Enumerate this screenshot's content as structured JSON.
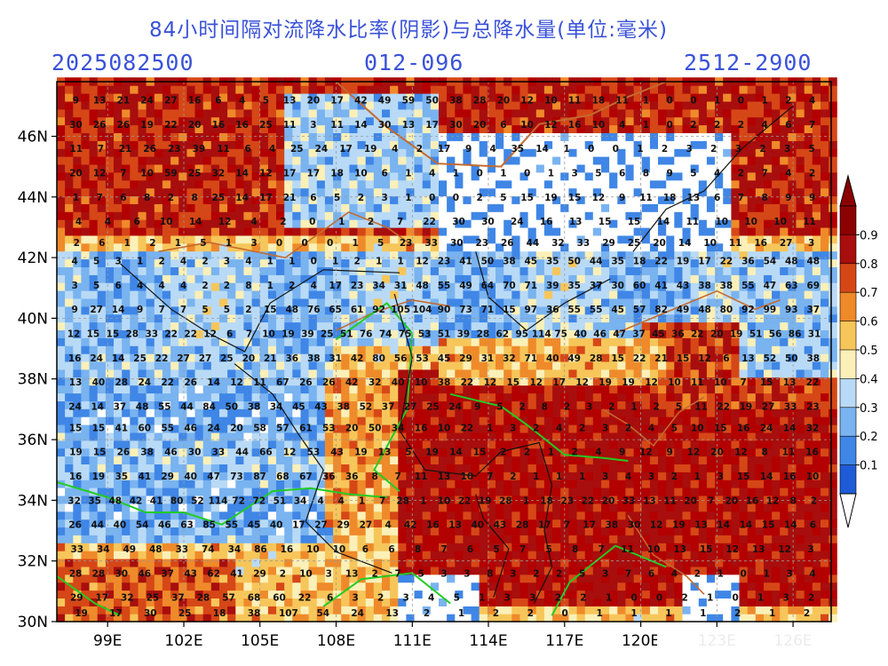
{
  "title": "84小时间隔对流降水比率(阴影)与总降水量(单位:毫米)",
  "subtitle": {
    "left": "2025082500",
    "middle": "012-096",
    "right": "2512-2900"
  },
  "map": {
    "lon_min": 97.0,
    "lon_max": 127.5,
    "lat_min": 30.0,
    "lat_max": 47.8,
    "x_ticks": [
      "99E",
      "102E",
      "105E",
      "108E",
      "111E",
      "114E",
      "117E",
      "120E",
      "123E",
      "126E"
    ],
    "x_tick_lons": [
      99,
      102,
      105,
      108,
      111,
      114,
      117,
      120,
      123,
      126
    ],
    "y_ticks": [
      "30N",
      "32N",
      "34N",
      "36N",
      "38N",
      "40N",
      "42N",
      "44N",
      "46N"
    ],
    "y_tick_lats": [
      30,
      32,
      34,
      36,
      38,
      40,
      42,
      44,
      46
    ]
  },
  "colorbar": {
    "labels": [
      "0.9",
      "0.8",
      "0.7",
      "0.6",
      "0.5",
      "0.4",
      "0.3",
      "0.2",
      "0.1"
    ],
    "colors": [
      "#1f5bd6",
      "#3f86e6",
      "#79b3f0",
      "#b9daf6",
      "#fbf0b8",
      "#f7c65a",
      "#ef8a2a",
      "#d64717",
      "#a80e0d",
      "#8b0000"
    ],
    "under_color": "#ffffff",
    "over_color": "#b30000"
  },
  "precip_rows": [
    {
      "lat": 47.2,
      "values": [
        9,
        13,
        21,
        24,
        27,
        16,
        6,
        4,
        5,
        13,
        20,
        17,
        42,
        49,
        59,
        50,
        38,
        28,
        20,
        12,
        10,
        11,
        18,
        11,
        1,
        0,
        0,
        1,
        0,
        1,
        2,
        4
      ]
    },
    {
      "lat": 46.4,
      "values": [
        30,
        26,
        26,
        19,
        22,
        20,
        16,
        16,
        25,
        11,
        3,
        11,
        14,
        30,
        13,
        17,
        30,
        20,
        6,
        10,
        12,
        16,
        10,
        4,
        1,
        0,
        2,
        2,
        2,
        4,
        6,
        7
      ]
    },
    {
      "lat": 45.6,
      "values": [
        11,
        7,
        21,
        26,
        23,
        39,
        11,
        6,
        4,
        25,
        24,
        17,
        19,
        4,
        2,
        17,
        9,
        4,
        35,
        14,
        1,
        0,
        0,
        1,
        2,
        3,
        2,
        3,
        2,
        3,
        5
      ]
    },
    {
      "lat": 44.8,
      "values": [
        20,
        12,
        7,
        10,
        59,
        25,
        32,
        14,
        12,
        17,
        17,
        18,
        10,
        6,
        1,
        4,
        1,
        0,
        1,
        0,
        1,
        3,
        5,
        6,
        8,
        9,
        5,
        4,
        2,
        7,
        4,
        2
      ]
    },
    {
      "lat": 44.0,
      "values": [
        1,
        7,
        6,
        8,
        2,
        8,
        25,
        14,
        17,
        21,
        6,
        5,
        2,
        3,
        1,
        0,
        0,
        2,
        5,
        15,
        19,
        15,
        12,
        9,
        11,
        18,
        13,
        6,
        7,
        8,
        9,
        9
      ]
    },
    {
      "lat": 43.2,
      "values": [
        4,
        4,
        6,
        10,
        14,
        12,
        4,
        2,
        0,
        1,
        2,
        7,
        22,
        30,
        30,
        24,
        16,
        13,
        15,
        15,
        14,
        11,
        10,
        10,
        10,
        11
      ]
    },
    {
      "lat": 42.5,
      "values": [
        2,
        6,
        1,
        2,
        1,
        5,
        1,
        3,
        0,
        0,
        0,
        1,
        5,
        23,
        33,
        30,
        23,
        26,
        44,
        32,
        33,
        29,
        25,
        20,
        14,
        10,
        11,
        16,
        27,
        3
      ]
    },
    {
      "lat": 41.9,
      "values": [
        4,
        5,
        3,
        1,
        2,
        4,
        2,
        3,
        4,
        1,
        1,
        0,
        1,
        2,
        1,
        1,
        12,
        23,
        41,
        50,
        38,
        45,
        35,
        50,
        44,
        35,
        18,
        22,
        19,
        17,
        22,
        36,
        54,
        48,
        48
      ]
    },
    {
      "lat": 41.1,
      "values": [
        3,
        5,
        6,
        4,
        4,
        4,
        2,
        2,
        8,
        1,
        2,
        4,
        17,
        23,
        34,
        31,
        48,
        55,
        49,
        64,
        70,
        71,
        39,
        35,
        37,
        30,
        60,
        41,
        43,
        38,
        38,
        55,
        47,
        63,
        69
      ]
    },
    {
      "lat": 40.3,
      "values": [
        9,
        27,
        14,
        9,
        7,
        7,
        5,
        5,
        2,
        15,
        48,
        76,
        65,
        61,
        92,
        105,
        104,
        90,
        73,
        71,
        15,
        97,
        36,
        55,
        55,
        45,
        57,
        82,
        49,
        48,
        80,
        92,
        99,
        93,
        37
      ]
    },
    {
      "lat": 39.5,
      "values": [
        12,
        15,
        15,
        28,
        33,
        22,
        22,
        12,
        6,
        7,
        10,
        19,
        39,
        25,
        51,
        76,
        74,
        75,
        53,
        51,
        39,
        28,
        62,
        95,
        114,
        75,
        40,
        46,
        47,
        37,
        45,
        36,
        22,
        20,
        19,
        51,
        56,
        86,
        31
      ]
    },
    {
      "lat": 38.7,
      "values": [
        16,
        24,
        14,
        25,
        22,
        27,
        27,
        25,
        20,
        21,
        36,
        38,
        31,
        42,
        80,
        56,
        53,
        45,
        29,
        31,
        32,
        71,
        40,
        49,
        28,
        15,
        22,
        21,
        15,
        12,
        6,
        13,
        52,
        50,
        38
      ]
    },
    {
      "lat": 37.9,
      "values": [
        13,
        40,
        28,
        24,
        22,
        26,
        14,
        12,
        11,
        67,
        26,
        26,
        42,
        32,
        40,
        10,
        38,
        22,
        12,
        15,
        12,
        17,
        12,
        19,
        19,
        12,
        10,
        11,
        10,
        7,
        15,
        13,
        22
      ]
    },
    {
      "lat": 37.1,
      "values": [
        24,
        14,
        37,
        48,
        55,
        44,
        84,
        50,
        38,
        34,
        45,
        43,
        38,
        52,
        37,
        27,
        25,
        24,
        9,
        5,
        2,
        8,
        2,
        3,
        2,
        1,
        2,
        5,
        11,
        22,
        19,
        27,
        33,
        23
      ]
    },
    {
      "lat": 36.4,
      "values": [
        15,
        15,
        41,
        60,
        55,
        46,
        24,
        20,
        58,
        57,
        61,
        53,
        20,
        50,
        34,
        16,
        10,
        22,
        1,
        3,
        2,
        4,
        2,
        3,
        2,
        4,
        5,
        10,
        15,
        16,
        24,
        14,
        32
      ]
    },
    {
      "lat": 35.6,
      "values": [
        19,
        15,
        26,
        38,
        46,
        30,
        33,
        44,
        66,
        12,
        53,
        43,
        19,
        13,
        5,
        19,
        14,
        15,
        2,
        2,
        1,
        2,
        4,
        9,
        12,
        9,
        12,
        20,
        12,
        8,
        11,
        16
      ]
    },
    {
      "lat": 34.8,
      "values": [
        16,
        19,
        35,
        41,
        29,
        40,
        47,
        73,
        87,
        68,
        67,
        36,
        36,
        8,
        7,
        11,
        13,
        10,
        7,
        2,
        1,
        1,
        1,
        3,
        4,
        3,
        2,
        1,
        3,
        15,
        14,
        16,
        10
      ]
    },
    {
      "lat": 34.0,
      "values": [
        32,
        35,
        48,
        42,
        41,
        80,
        52,
        114,
        72,
        72,
        51,
        34,
        4,
        4,
        1,
        7,
        28,
        1,
        10,
        22,
        19,
        28,
        1,
        18,
        23,
        22,
        20,
        33,
        13,
        11,
        20,
        7,
        20,
        16,
        12,
        8,
        2
      ]
    },
    {
      "lat": 33.2,
      "values": [
        26,
        44,
        40,
        54,
        46,
        63,
        85,
        55,
        45,
        40,
        17,
        27,
        29,
        27,
        4,
        42,
        16,
        13,
        40,
        43,
        28,
        17,
        7,
        17,
        38,
        30,
        12,
        19,
        13,
        14,
        14,
        15,
        14,
        6
      ]
    },
    {
      "lat": 32.4,
      "values": [
        33,
        34,
        49,
        48,
        33,
        74,
        34,
        86,
        16,
        10,
        10,
        6,
        6,
        8,
        7,
        6,
        5,
        7,
        5,
        8,
        7,
        11,
        10,
        13,
        15,
        12,
        13,
        12,
        3
      ]
    },
    {
      "lat": 31.6,
      "values": [
        28,
        28,
        30,
        46,
        37,
        43,
        62,
        41,
        29,
        2,
        10,
        3,
        13,
        2,
        7,
        5,
        3,
        3,
        8,
        3,
        2,
        2,
        5,
        3,
        7,
        6,
        4,
        2,
        1,
        0,
        1,
        3,
        4
      ]
    },
    {
      "lat": 30.8,
      "values": [
        29,
        17,
        32,
        25,
        37,
        28,
        57,
        68,
        60,
        22,
        6,
        3,
        2,
        3,
        4,
        5,
        1,
        3,
        3,
        2,
        2,
        1,
        0,
        0,
        2,
        1,
        0,
        1,
        3,
        2
      ]
    },
    {
      "lat": 30.3,
      "values": [
        19,
        17,
        30,
        25,
        18,
        38,
        107,
        54,
        24,
        13,
        2,
        1,
        2,
        2,
        0,
        1,
        1,
        1,
        1,
        2,
        1,
        2
      ]
    }
  ]
}
